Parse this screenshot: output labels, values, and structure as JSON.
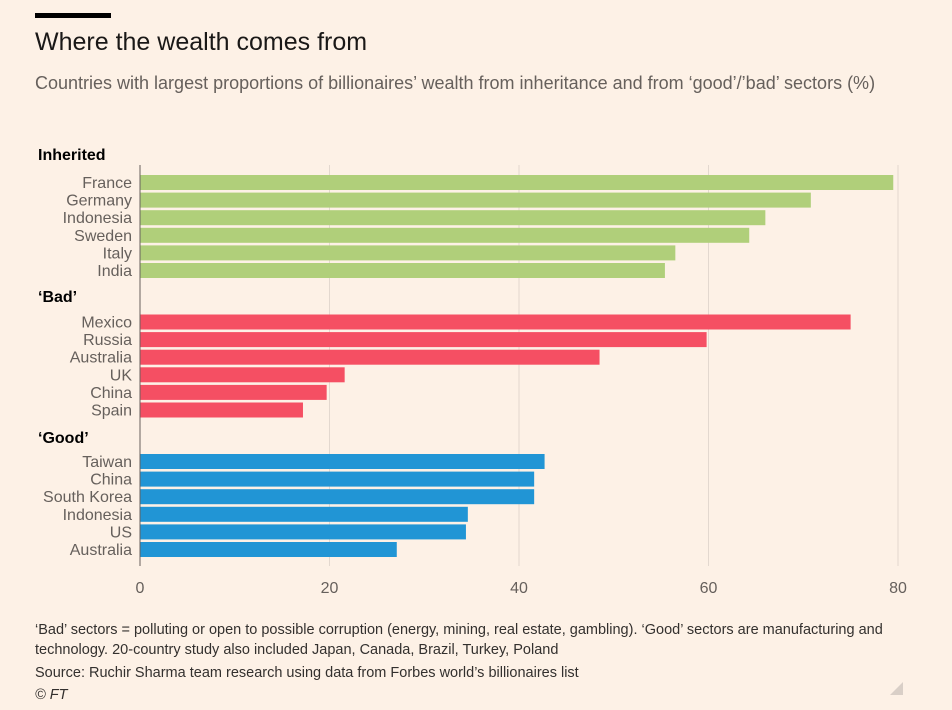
{
  "title": "Where the wealth comes from",
  "subtitle": "Countries with largest proportions of billionaires’ wealth from inheritance and from ‘good’/’bad’ sectors (%)",
  "chart_data": {
    "type": "bar",
    "orientation": "horizontal",
    "xlim": [
      0,
      80
    ],
    "xticks": [
      0,
      20,
      40,
      60,
      80
    ],
    "grid": true,
    "groups": [
      {
        "name": "Inherited",
        "color": "#b0cf7a",
        "categories": [
          "France",
          "Germany",
          "Indonesia",
          "Sweden",
          "Italy",
          "India"
        ],
        "values": [
          79.5,
          70.8,
          66,
          64.3,
          56.5,
          55.4
        ]
      },
      {
        "name": "‘Bad’",
        "color": "#f54f63",
        "categories": [
          "Mexico",
          "Russia",
          "Australia",
          "UK",
          "China",
          "Spain"
        ],
        "values": [
          75,
          59.8,
          48.5,
          21.6,
          19.7,
          17.2
        ]
      },
      {
        "name": "‘Good’",
        "color": "#2195d5",
        "categories": [
          "Taiwan",
          "China",
          "South Korea",
          "Indonesia",
          "US",
          "Australia"
        ],
        "values": [
          42.7,
          41.6,
          41.6,
          34.6,
          34.4,
          27.1
        ]
      }
    ]
  },
  "footer": {
    "note": "‘Bad’ sectors = polluting or open to possible corruption (energy, mining, real estate, gambling). ‘Good’ sectors are manufacturing and technology. 20-country study also included Japan, Canada, Brazil, Turkey, Poland",
    "source": "Source: Ruchir Sharma team research using data from Forbes world’s billionaires list",
    "credit": "© FT"
  }
}
